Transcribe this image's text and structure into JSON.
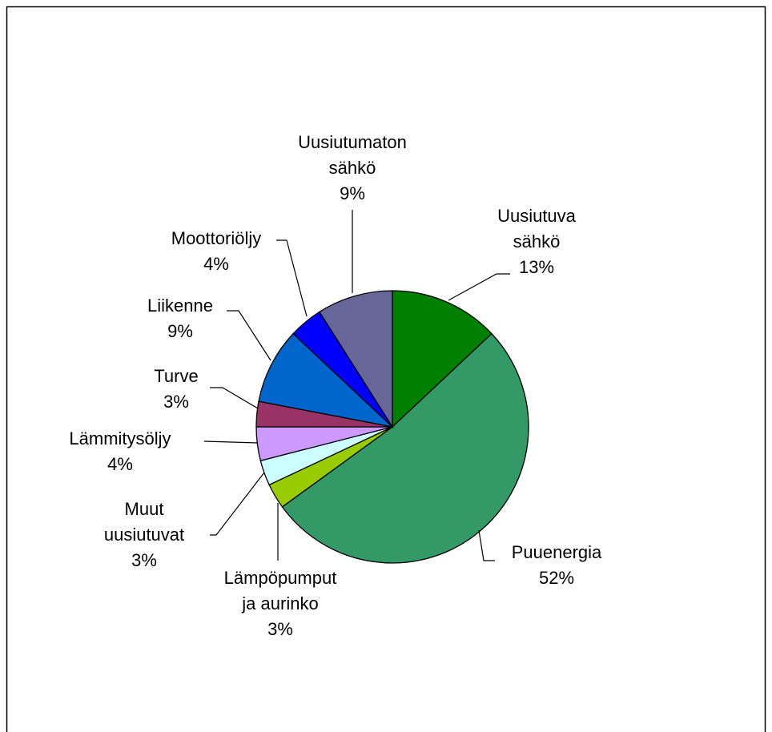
{
  "chart_data": {
    "type": "pie",
    "categories": [
      "Uusiutuva sähkö",
      "Puuenergia",
      "Lämpöpumput ja aurinko",
      "Muut uusiutuvat",
      "Lämmitysöljy",
      "Turve",
      "Liikenne",
      "Moottoriöljy",
      "Uusiutumaton sähkö"
    ],
    "values": [
      13,
      52,
      3,
      3,
      4,
      3,
      9,
      4,
      9
    ],
    "value_labels": [
      "13%",
      "52%",
      "3%",
      "3%",
      "4%",
      "3%",
      "9%",
      "4%",
      "9%"
    ],
    "colors": [
      "#008000",
      "#339966",
      "#99cc00",
      "#ccffff",
      "#cc99ff",
      "#993366",
      "#0066cc",
      "#0000ff",
      "#666699"
    ]
  }
}
